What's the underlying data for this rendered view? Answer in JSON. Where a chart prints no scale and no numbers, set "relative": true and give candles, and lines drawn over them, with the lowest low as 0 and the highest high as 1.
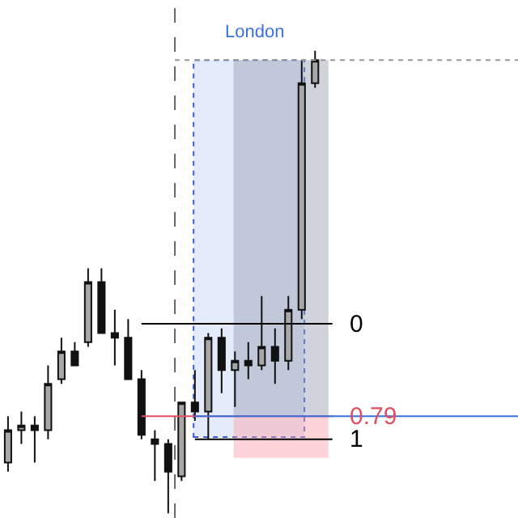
{
  "chart_data": {
    "type": "candlestick",
    "relative": true,
    "grid": false,
    "legend": false,
    "categories": [
      null,
      null,
      null,
      null,
      null,
      null,
      null,
      null,
      null,
      null,
      null,
      null,
      null,
      null,
      null,
      null,
      null,
      null,
      null,
      null,
      null,
      null,
      null,
      null
    ],
    "ohlc": [
      [
        0.11,
        0.21,
        0.09,
        0.18
      ],
      [
        0.18,
        0.22,
        0.15,
        0.19
      ],
      [
        0.19,
        0.21,
        0.11,
        0.18
      ],
      [
        0.18,
        0.32,
        0.16,
        0.28
      ],
      [
        0.29,
        0.38,
        0.28,
        0.35
      ],
      [
        0.35,
        0.37,
        0.32,
        0.32
      ],
      [
        0.37,
        0.53,
        0.36,
        0.5
      ],
      [
        0.5,
        0.53,
        0.39,
        0.39
      ],
      [
        0.39,
        0.44,
        0.32,
        0.38
      ],
      [
        0.38,
        0.42,
        0.29,
        0.29
      ],
      [
        0.29,
        0.31,
        0.16,
        0.17
      ],
      [
        0.16,
        0.18,
        0.07,
        0.15
      ],
      [
        0.15,
        0.16,
        0,
        0.09
      ],
      [
        0.08,
        0.24,
        0.07,
        0.24
      ],
      [
        0.24,
        0.31,
        0.2,
        0.22
      ],
      [
        0.22,
        0.39,
        0.16,
        0.38
      ],
      [
        0.38,
        0.4,
        0.26,
        0.31
      ],
      [
        0.31,
        0.35,
        0.23,
        0.33
      ],
      [
        0.33,
        0.37,
        0.29,
        0.32
      ],
      [
        0.32,
        0.47,
        0.31,
        0.36
      ],
      [
        0.36,
        0.4,
        0.28,
        0.33
      ],
      [
        0.33,
        0.47,
        0.31,
        0.44
      ],
      [
        0.44,
        0.98,
        0.42,
        0.93
      ],
      [
        0.93,
        1,
        0.92,
        0.98
      ]
    ],
    "ref_lines": [
      {
        "axis": "y",
        "value": 0.41,
        "color": "#000000"
      },
      {
        "axis": "y",
        "value": 0.21,
        "color": "#e05060"
      },
      {
        "axis": "y",
        "value": 0.16,
        "color": "#000000"
      },
      {
        "axis": "y",
        "value": 0.21,
        "color": "#3a6fe0"
      },
      {
        "axis": "y",
        "value": 0.98,
        "color": "#999999",
        "line_style": "dotted"
      }
    ],
    "bands": [
      {
        "axis": "y",
        "from": 0.21,
        "to": 0.98,
        "color": "#969eb2"
      },
      {
        "axis": "y",
        "from": 0.12,
        "to": 0.21,
        "color": "#ffa0aa"
      }
    ],
    "annotations": [
      "London",
      "0",
      "0.79",
      "1"
    ]
  }
}
